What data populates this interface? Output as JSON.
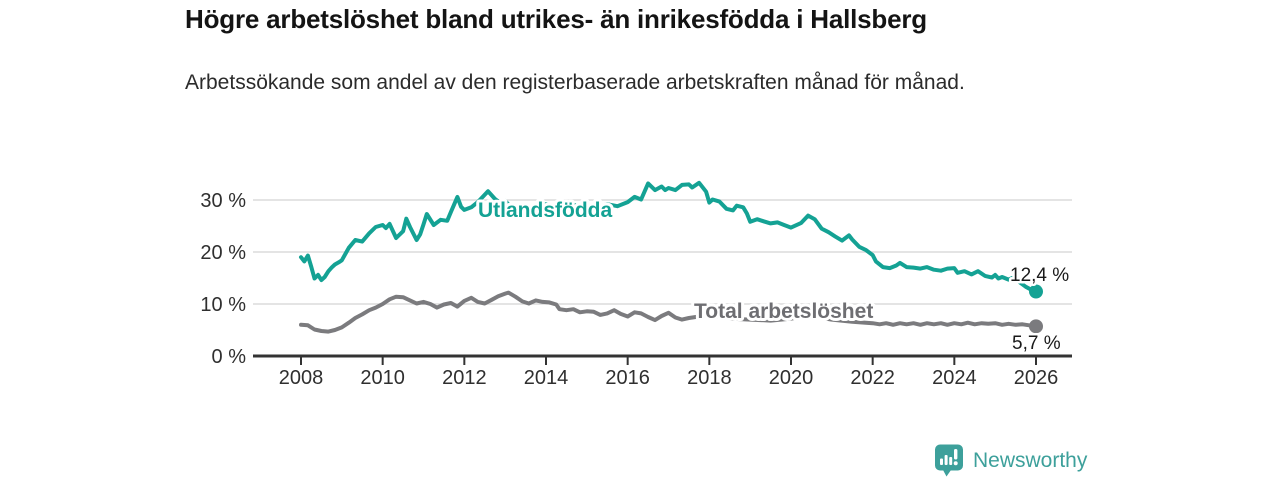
{
  "chart_data": {
    "type": "line",
    "title": "Högre arbetslöshet bland utrikes- än inrikesfödda i Hallsberg",
    "subtitle": "Arbetssökande som andel av den registerbaserade arbetskraften månad för månad.",
    "xlabel": "",
    "ylabel": "",
    "unit": "%",
    "grid": "horizontal",
    "legend_position": "inline",
    "x_axis": {
      "range": [
        2006.8,
        2026.9
      ],
      "ticks": [
        {
          "value": 2008,
          "label": "2008"
        },
        {
          "value": 2010,
          "label": "2010"
        },
        {
          "value": 2012,
          "label": "2012"
        },
        {
          "value": 2014,
          "label": "2014"
        },
        {
          "value": 2016,
          "label": "2016"
        },
        {
          "value": 2018,
          "label": "2018"
        },
        {
          "value": 2020,
          "label": "2020"
        },
        {
          "value": 2022,
          "label": "2022"
        },
        {
          "value": 2024,
          "label": "2024"
        },
        {
          "value": 2026,
          "label": "2026"
        }
      ]
    },
    "y_axis": {
      "range": [
        0,
        35
      ],
      "ticks": [
        {
          "value": 0,
          "label": "0 %"
        },
        {
          "value": 10,
          "label": "10 %"
        },
        {
          "value": 20,
          "label": "20 %"
        },
        {
          "value": 30,
          "label": "30 %"
        }
      ]
    },
    "series": [
      {
        "id": "utlandsfodda",
        "name": "Utlandsfödda",
        "color": "#14A294",
        "label_color": "#14A294",
        "end_label": "12,4 %",
        "last_value": 12.4,
        "points": [
          [
            2008.0,
            19.0
          ],
          [
            2008.08,
            18.2
          ],
          [
            2008.17,
            19.3
          ],
          [
            2008.25,
            17.2
          ],
          [
            2008.33,
            14.9
          ],
          [
            2008.42,
            15.6
          ],
          [
            2008.5,
            14.6
          ],
          [
            2008.58,
            15.2
          ],
          [
            2008.67,
            16.3
          ],
          [
            2008.75,
            17.0
          ],
          [
            2008.83,
            17.6
          ],
          [
            2008.92,
            18.0
          ],
          [
            2009.0,
            18.4
          ],
          [
            2009.17,
            20.8
          ],
          [
            2009.33,
            22.3
          ],
          [
            2009.5,
            22.0
          ],
          [
            2009.67,
            23.6
          ],
          [
            2009.83,
            24.8
          ],
          [
            2010.0,
            25.2
          ],
          [
            2010.08,
            24.6
          ],
          [
            2010.17,
            25.4
          ],
          [
            2010.33,
            22.7
          ],
          [
            2010.5,
            24.0
          ],
          [
            2010.58,
            26.4
          ],
          [
            2010.67,
            24.8
          ],
          [
            2010.83,
            22.3
          ],
          [
            2010.92,
            23.4
          ],
          [
            2011.0,
            25.3
          ],
          [
            2011.08,
            27.3
          ],
          [
            2011.25,
            25.2
          ],
          [
            2011.42,
            26.2
          ],
          [
            2011.58,
            26.0
          ],
          [
            2011.67,
            27.7
          ],
          [
            2011.83,
            30.6
          ],
          [
            2011.92,
            28.7
          ],
          [
            2012.0,
            28.1
          ],
          [
            2012.17,
            28.6
          ],
          [
            2012.33,
            29.6
          ],
          [
            2012.5,
            31.0
          ],
          [
            2012.58,
            31.7
          ],
          [
            2012.75,
            30.2
          ],
          [
            2012.92,
            29.2
          ],
          [
            2013.0,
            29.8
          ],
          [
            2013.17,
            28.4
          ],
          [
            2013.33,
            27.3
          ],
          [
            2013.5,
            26.7
          ],
          [
            2013.67,
            27.8
          ],
          [
            2013.83,
            28.6
          ],
          [
            2014.0,
            29.2
          ],
          [
            2014.17,
            28.6
          ],
          [
            2014.33,
            29.0
          ],
          [
            2014.5,
            28.6
          ],
          [
            2014.67,
            29.1
          ],
          [
            2014.83,
            28.7
          ],
          [
            2015.0,
            29.0
          ],
          [
            2015.25,
            28.6
          ],
          [
            2015.5,
            29.2
          ],
          [
            2015.75,
            28.8
          ],
          [
            2016.0,
            29.6
          ],
          [
            2016.17,
            30.6
          ],
          [
            2016.33,
            30.1
          ],
          [
            2016.5,
            33.2
          ],
          [
            2016.67,
            31.9
          ],
          [
            2016.83,
            32.6
          ],
          [
            2016.92,
            31.9
          ],
          [
            2017.0,
            32.3
          ],
          [
            2017.17,
            31.9
          ],
          [
            2017.33,
            32.9
          ],
          [
            2017.5,
            33.0
          ],
          [
            2017.58,
            32.4
          ],
          [
            2017.75,
            33.3
          ],
          [
            2017.92,
            31.6
          ],
          [
            2018.0,
            29.5
          ],
          [
            2018.08,
            30.1
          ],
          [
            2018.25,
            29.7
          ],
          [
            2018.42,
            28.3
          ],
          [
            2018.58,
            28.0
          ],
          [
            2018.67,
            28.9
          ],
          [
            2018.83,
            28.6
          ],
          [
            2018.92,
            27.4
          ],
          [
            2019.0,
            25.8
          ],
          [
            2019.17,
            26.3
          ],
          [
            2019.33,
            25.9
          ],
          [
            2019.5,
            25.5
          ],
          [
            2019.67,
            25.7
          ],
          [
            2019.83,
            25.2
          ],
          [
            2020.0,
            24.7
          ],
          [
            2020.25,
            25.6
          ],
          [
            2020.42,
            27.0
          ],
          [
            2020.58,
            26.3
          ],
          [
            2020.75,
            24.5
          ],
          [
            2020.92,
            23.8
          ],
          [
            2021.08,
            23.0
          ],
          [
            2021.25,
            22.2
          ],
          [
            2021.42,
            23.2
          ],
          [
            2021.5,
            22.4
          ],
          [
            2021.67,
            21.0
          ],
          [
            2021.83,
            20.4
          ],
          [
            2022.0,
            19.4
          ],
          [
            2022.08,
            18.2
          ],
          [
            2022.25,
            17.1
          ],
          [
            2022.42,
            16.9
          ],
          [
            2022.58,
            17.4
          ],
          [
            2022.67,
            17.9
          ],
          [
            2022.83,
            17.1
          ],
          [
            2023.0,
            17.0
          ],
          [
            2023.17,
            16.8
          ],
          [
            2023.33,
            17.1
          ],
          [
            2023.5,
            16.6
          ],
          [
            2023.67,
            16.4
          ],
          [
            2023.83,
            16.8
          ],
          [
            2024.0,
            16.9
          ],
          [
            2024.08,
            16.0
          ],
          [
            2024.25,
            16.3
          ],
          [
            2024.42,
            15.7
          ],
          [
            2024.58,
            16.3
          ],
          [
            2024.75,
            15.4
          ],
          [
            2024.92,
            15.1
          ],
          [
            2025.0,
            15.6
          ],
          [
            2025.08,
            14.9
          ],
          [
            2025.17,
            15.2
          ],
          [
            2025.33,
            14.7
          ],
          [
            2025.42,
            15.0
          ],
          [
            2025.58,
            14.3
          ],
          [
            2025.75,
            13.3
          ],
          [
            2025.92,
            12.6
          ],
          [
            2026.0,
            12.4
          ]
        ]
      },
      {
        "id": "total-arbetsloshet",
        "name": "Total arbetslöshet",
        "color": "#7B7B7E",
        "label_color": "#6E6E72",
        "end_label": "5,7 %",
        "last_value": 5.7,
        "points": [
          [
            2008.0,
            6.0
          ],
          [
            2008.17,
            5.9
          ],
          [
            2008.33,
            5.1
          ],
          [
            2008.5,
            4.8
          ],
          [
            2008.67,
            4.7
          ],
          [
            2008.83,
            5.0
          ],
          [
            2009.0,
            5.5
          ],
          [
            2009.17,
            6.4
          ],
          [
            2009.33,
            7.3
          ],
          [
            2009.5,
            8.0
          ],
          [
            2009.67,
            8.8
          ],
          [
            2009.83,
            9.3
          ],
          [
            2010.0,
            10.0
          ],
          [
            2010.17,
            10.9
          ],
          [
            2010.33,
            11.4
          ],
          [
            2010.5,
            11.3
          ],
          [
            2010.67,
            10.7
          ],
          [
            2010.83,
            10.1
          ],
          [
            2011.0,
            10.4
          ],
          [
            2011.17,
            10.0
          ],
          [
            2011.33,
            9.3
          ],
          [
            2011.5,
            9.9
          ],
          [
            2011.67,
            10.2
          ],
          [
            2011.83,
            9.5
          ],
          [
            2012.0,
            10.6
          ],
          [
            2012.17,
            11.2
          ],
          [
            2012.33,
            10.4
          ],
          [
            2012.5,
            10.1
          ],
          [
            2012.67,
            10.8
          ],
          [
            2012.83,
            11.5
          ],
          [
            2013.0,
            12.0
          ],
          [
            2013.08,
            12.2
          ],
          [
            2013.25,
            11.4
          ],
          [
            2013.42,
            10.5
          ],
          [
            2013.58,
            10.1
          ],
          [
            2013.75,
            10.7
          ],
          [
            2013.92,
            10.4
          ],
          [
            2014.08,
            10.3
          ],
          [
            2014.25,
            9.9
          ],
          [
            2014.33,
            9.0
          ],
          [
            2014.5,
            8.8
          ],
          [
            2014.67,
            9.0
          ],
          [
            2014.83,
            8.4
          ],
          [
            2015.0,
            8.6
          ],
          [
            2015.17,
            8.5
          ],
          [
            2015.33,
            7.9
          ],
          [
            2015.5,
            8.2
          ],
          [
            2015.67,
            8.8
          ],
          [
            2015.83,
            8.1
          ],
          [
            2016.0,
            7.6
          ],
          [
            2016.17,
            8.4
          ],
          [
            2016.33,
            8.2
          ],
          [
            2016.5,
            7.5
          ],
          [
            2016.67,
            6.9
          ],
          [
            2016.83,
            7.7
          ],
          [
            2017.0,
            8.3
          ],
          [
            2017.17,
            7.4
          ],
          [
            2017.33,
            7.0
          ],
          [
            2017.5,
            7.3
          ],
          [
            2017.75,
            7.6
          ],
          [
            2018.0,
            7.8
          ],
          [
            2018.5,
            7.2
          ],
          [
            2019.0,
            7.0
          ],
          [
            2019.5,
            6.8
          ],
          [
            2020.0,
            7.2
          ],
          [
            2020.42,
            7.8
          ],
          [
            2021.0,
            7.0
          ],
          [
            2021.5,
            6.6
          ],
          [
            2021.83,
            6.4
          ],
          [
            2022.0,
            6.3
          ],
          [
            2022.17,
            6.1
          ],
          [
            2022.33,
            6.3
          ],
          [
            2022.5,
            6.0
          ],
          [
            2022.67,
            6.3
          ],
          [
            2022.83,
            6.1
          ],
          [
            2023.0,
            6.3
          ],
          [
            2023.17,
            6.0
          ],
          [
            2023.33,
            6.3
          ],
          [
            2023.5,
            6.1
          ],
          [
            2023.67,
            6.3
          ],
          [
            2023.83,
            6.0
          ],
          [
            2024.0,
            6.3
          ],
          [
            2024.17,
            6.1
          ],
          [
            2024.33,
            6.4
          ],
          [
            2024.5,
            6.1
          ],
          [
            2024.67,
            6.3
          ],
          [
            2024.83,
            6.2
          ],
          [
            2025.0,
            6.3
          ],
          [
            2025.17,
            6.0
          ],
          [
            2025.33,
            6.2
          ],
          [
            2025.5,
            6.0
          ],
          [
            2025.67,
            6.1
          ],
          [
            2025.83,
            5.9
          ],
          [
            2026.0,
            5.7
          ]
        ]
      }
    ]
  },
  "branding": {
    "name": "Newsworthy",
    "logo_icon": "bar-chart-speech-bubble-icon",
    "color": "#3DA09B"
  }
}
